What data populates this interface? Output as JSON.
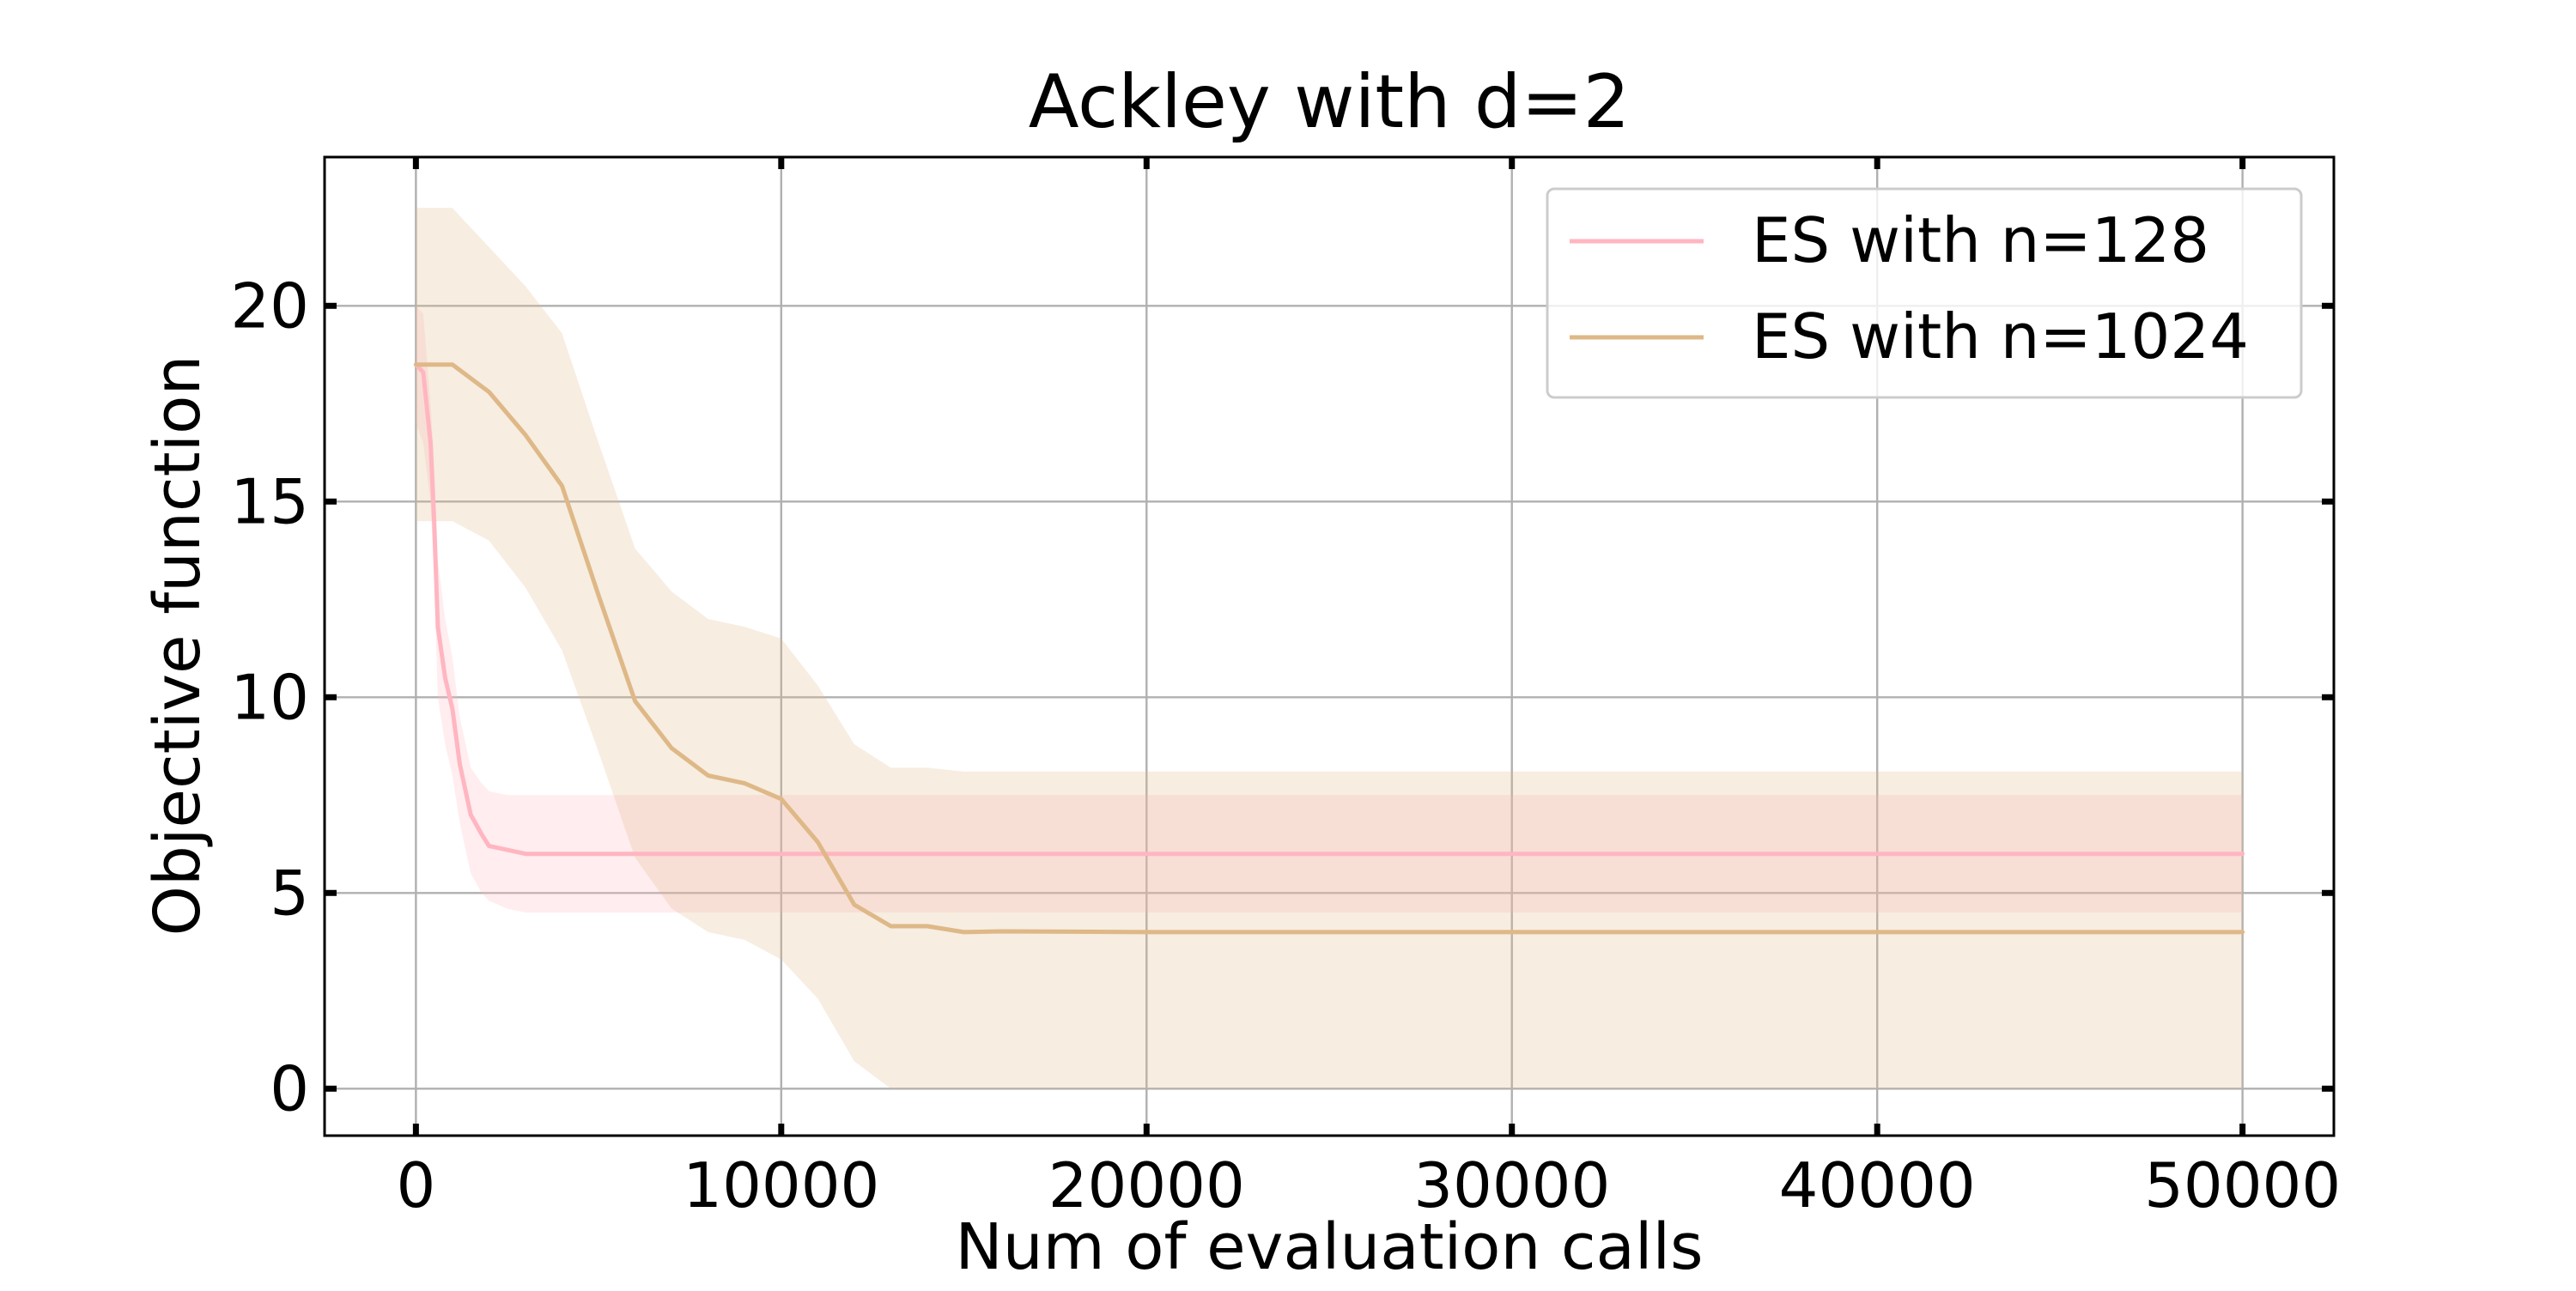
{
  "chart_data": {
    "type": "line",
    "title": "Ackley with d=2",
    "xlabel": "Num of evaluation calls",
    "ylabel": "Objective function",
    "xlim": [
      -2500,
      52500
    ],
    "ylim": [
      -1.2,
      23.8
    ],
    "xticks": [
      0,
      10000,
      20000,
      30000,
      40000,
      50000
    ],
    "xtick_labels": [
      "0",
      "10000",
      "20000",
      "30000",
      "40000",
      "50000"
    ],
    "yticks": [
      0,
      5,
      10,
      15,
      20
    ],
    "ytick_labels": [
      "0",
      "5",
      "10",
      "15",
      "20"
    ],
    "grid": true,
    "legend_position": "top-right",
    "series": [
      {
        "name": "ES with n=128",
        "color": "#ffb6c1",
        "band_opacity": 0.25,
        "x": [
          0,
          200,
          400,
          500,
          600,
          800,
          1000,
          1200,
          1500,
          1800,
          2000,
          2500,
          3000,
          5000,
          10000,
          20000,
          30000,
          40000,
          50000
        ],
        "y": [
          18.5,
          18.3,
          16.5,
          14.5,
          11.8,
          10.5,
          9.7,
          8.3,
          7.0,
          6.5,
          6.2,
          6.1,
          6.0,
          6.0,
          6.0,
          6.0,
          6.0,
          6.0,
          6.0
        ],
        "upper": [
          20.0,
          19.8,
          17.5,
          16.0,
          13.5,
          12.0,
          11.0,
          9.5,
          8.2,
          7.8,
          7.6,
          7.5,
          7.5,
          7.5,
          7.5,
          7.5,
          7.5,
          7.5,
          7.5
        ],
        "lower": [
          17.0,
          16.5,
          15.0,
          13.0,
          10.0,
          8.8,
          8.0,
          6.8,
          5.5,
          5.0,
          4.8,
          4.6,
          4.5,
          4.5,
          4.5,
          4.5,
          4.5,
          4.5,
          4.5
        ]
      },
      {
        "name": "ES with n=1024",
        "color": "#deb887",
        "band_opacity": 0.25,
        "x": [
          0,
          1000,
          2000,
          3000,
          4000,
          5000,
          6000,
          7000,
          8000,
          9000,
          10000,
          11000,
          12000,
          13000,
          14000,
          15000,
          16000,
          20000,
          30000,
          40000,
          50000
        ],
        "y": [
          18.5,
          18.5,
          17.8,
          16.7,
          15.4,
          12.6,
          9.9,
          8.7,
          8.0,
          7.8,
          7.4,
          6.3,
          4.7,
          4.15,
          4.15,
          4.0,
          4.02,
          4.0,
          4.0,
          4.0,
          4.0
        ],
        "upper": [
          22.5,
          22.5,
          21.5,
          20.5,
          19.3,
          16.5,
          13.8,
          12.7,
          12.0,
          11.8,
          11.5,
          10.3,
          8.8,
          8.2,
          8.2,
          8.1,
          8.1,
          8.1,
          8.1,
          8.1,
          8.1
        ],
        "lower": [
          14.5,
          14.5,
          14.0,
          12.8,
          11.2,
          8.6,
          5.9,
          4.6,
          4.0,
          3.8,
          3.3,
          2.3,
          0.7,
          0.0,
          0.0,
          0.0,
          0.0,
          0.0,
          0.0,
          0.0,
          0.0
        ]
      }
    ]
  }
}
